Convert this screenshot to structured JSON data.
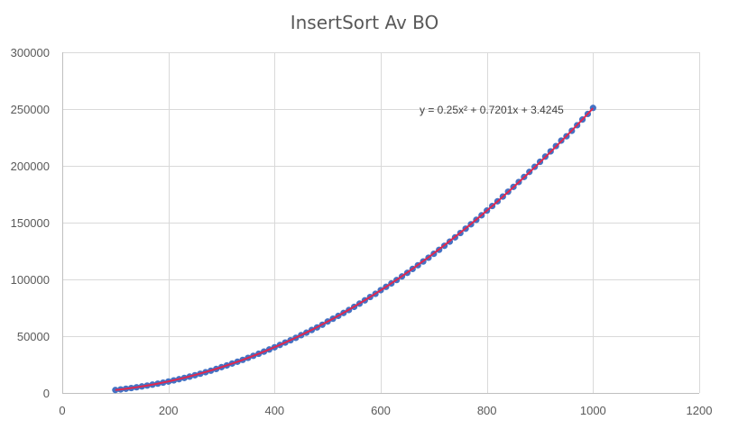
{
  "chart_data": {
    "type": "scatter",
    "title": "InsertSort Av BO",
    "xlabel": "",
    "ylabel": "",
    "xlim": [
      0,
      1200
    ],
    "ylim": [
      0,
      300000
    ],
    "x_ticks": [
      0,
      200,
      400,
      600,
      800,
      1000,
      1200
    ],
    "y_ticks": [
      0,
      50000,
      100000,
      150000,
      200000,
      250000,
      300000
    ],
    "grid": true,
    "legend": "none",
    "series": [
      {
        "marker_color": "#4472c4",
        "x": [
          100,
          110,
          120,
          130,
          140,
          150,
          160,
          170,
          180,
          190,
          200,
          210,
          220,
          230,
          240,
          250,
          260,
          270,
          280,
          290,
          300,
          310,
          320,
          330,
          340,
          350,
          360,
          370,
          380,
          390,
          400,
          410,
          420,
          430,
          440,
          450,
          460,
          470,
          480,
          490,
          500,
          510,
          520,
          530,
          540,
          550,
          560,
          570,
          580,
          590,
          600,
          610,
          620,
          630,
          640,
          650,
          660,
          670,
          680,
          690,
          700,
          710,
          720,
          730,
          740,
          750,
          760,
          770,
          780,
          790,
          800,
          810,
          820,
          830,
          840,
          850,
          860,
          870,
          880,
          890,
          900,
          910,
          920,
          930,
          940,
          950,
          960,
          970,
          980,
          990,
          1000
        ],
        "y": [
          2575,
          3104,
          3690,
          4331,
          5004,
          5733,
          6507,
          7324,
          8184,
          9099,
          10043,
          11060,
          12101,
          13212,
          14364,
          15596,
          16897,
          18256,
          19601,
          21107,
          22712,
          24232,
          25904,
          27472,
          29130,
          30890,
          32694,
          34510,
          36377,
          38274,
          40203,
          42264,
          44369,
          46400,
          48527,
          50862,
          53090,
          55426,
          57700,
          60076,
          62900,
          65346,
          67848,
          70442,
          73022,
          75807,
          78642,
          81532,
          84477,
          87285,
          90501,
          93435,
          96427,
          99472,
          102578,
          105746,
          109210,
          112445,
          115744,
          119113,
          122546,
          126047,
          129583,
          133244,
          137019,
          140837,
          144666,
          148542,
          152462,
          156453,
          160586,
          164624,
          168751,
          172941,
          177201,
          181458,
          185781,
          190181,
          194638,
          199102,
          203549,
          208114,
          212715,
          217422,
          222224,
          226032,
          230882,
          235775,
          240767,
          245691,
          251000
        ]
      }
    ],
    "trendline": {
      "type": "polynomial",
      "order": 2,
      "color": "#e0284f",
      "coefficients": [
        0.25,
        0.7201,
        3.4245
      ],
      "x_range": [
        100,
        1000
      ],
      "equation_label": "y = 0.25x² + 0.7201x + 3.4245"
    }
  }
}
